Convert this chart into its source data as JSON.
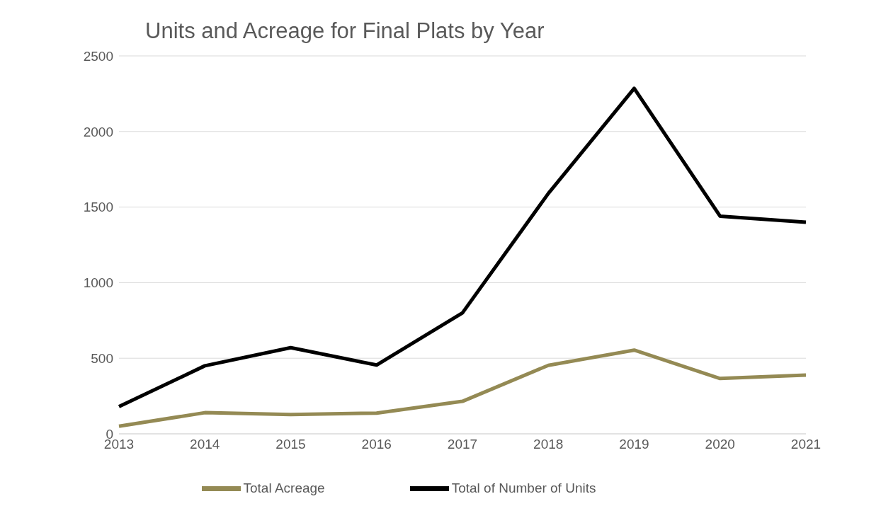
{
  "chart_data": {
    "type": "line",
    "title": "Units and Acreage for Final Plats by Year",
    "categories": [
      "2013",
      "2014",
      "2015",
      "2016",
      "2017",
      "2018",
      "2019",
      "2020",
      "2021"
    ],
    "series": [
      {
        "name": "Total of Number of Units",
        "color": "#000000",
        "values": [
          180,
          450,
          570,
          455,
          800,
          1590,
          2285,
          1440,
          1400
        ]
      },
      {
        "name": "Total Acreage",
        "color": "#948a54",
        "values": [
          50,
          140,
          128,
          137,
          215,
          453,
          554,
          366,
          389
        ]
      }
    ],
    "ylim": [
      0,
      2500
    ],
    "yticks": [
      0,
      500,
      1000,
      1500,
      2000,
      2500
    ],
    "grid": "y",
    "legend": "bottom",
    "marker": "none",
    "line_style": "solid"
  }
}
